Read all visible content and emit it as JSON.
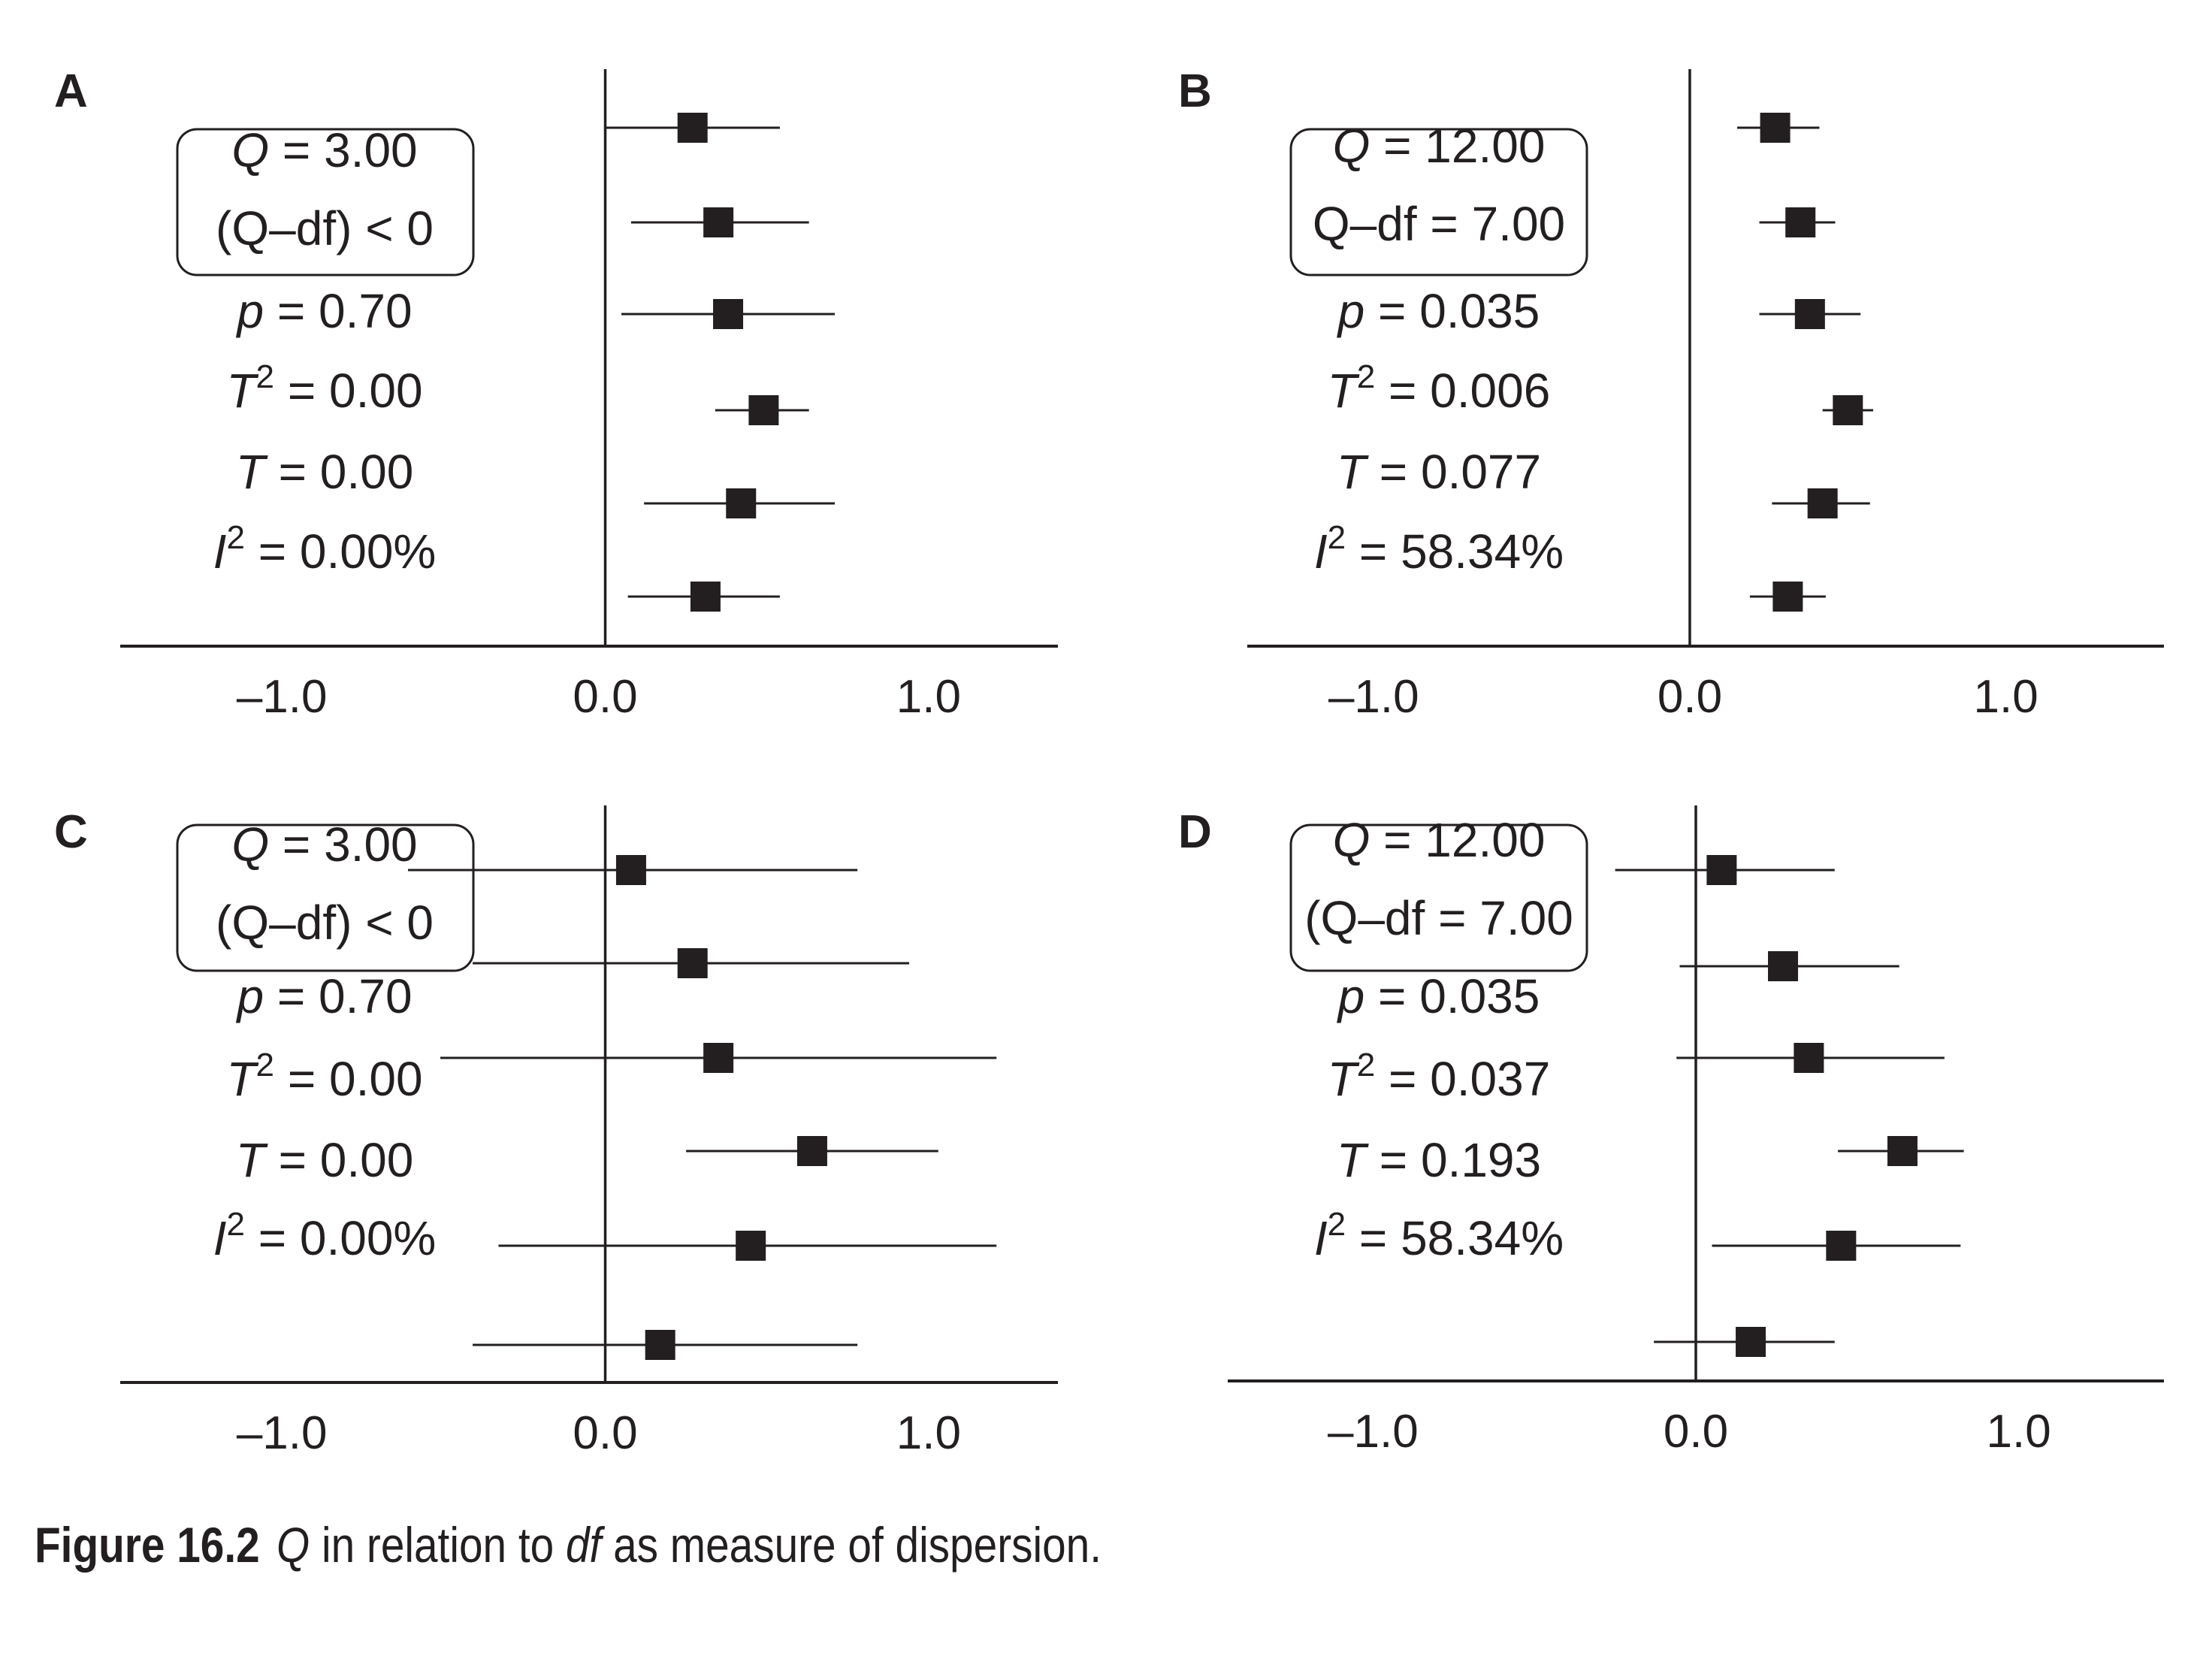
{
  "caption": {
    "label": "Figure 16.2",
    "text_q": "Q",
    "text_mid": " in relation to ",
    "text_df": "df",
    "text_end": " as measure of dispersion."
  },
  "chart_data": [
    {
      "panel": "A",
      "type": "scatter",
      "subtype": "forest-plot",
      "xlim": [
        -1.5,
        1.4
      ],
      "xticks": [
        -1.0,
        0.0,
        1.0
      ],
      "xtick_labels": [
        "–1.0",
        "0.0",
        "1.0"
      ],
      "reference_line_x": 0.0,
      "studies": [
        {
          "estimate": 0.27,
          "lower": 0.0,
          "upper": 0.54
        },
        {
          "estimate": 0.35,
          "lower": 0.08,
          "upper": 0.63
        },
        {
          "estimate": 0.38,
          "lower": 0.05,
          "upper": 0.71
        },
        {
          "estimate": 0.49,
          "lower": 0.34,
          "upper": 0.63
        },
        {
          "estimate": 0.42,
          "lower": 0.12,
          "upper": 0.71
        },
        {
          "estimate": 0.31,
          "lower": 0.07,
          "upper": 0.54
        }
      ],
      "stats": {
        "box": true,
        "q_text": "= 3.00",
        "qdf_text": "(Q–df) < 0",
        "p_text": "= 0.70",
        "t2_text": "= 0.00",
        "t_text": "= 0.00",
        "i2_text": "= 0.00%"
      }
    },
    {
      "panel": "B",
      "type": "scatter",
      "subtype": "forest-plot",
      "xlim": [
        -1.4,
        1.5
      ],
      "xticks": [
        -1.0,
        0.0,
        1.0
      ],
      "xtick_labels": [
        "–1.0",
        "0.0",
        "1.0"
      ],
      "reference_line_x": 0.0,
      "studies": [
        {
          "estimate": 0.27,
          "lower": 0.15,
          "upper": 0.41
        },
        {
          "estimate": 0.35,
          "lower": 0.22,
          "upper": 0.46
        },
        {
          "estimate": 0.38,
          "lower": 0.22,
          "upper": 0.54
        },
        {
          "estimate": 0.5,
          "lower": 0.42,
          "upper": 0.58
        },
        {
          "estimate": 0.42,
          "lower": 0.26,
          "upper": 0.57
        },
        {
          "estimate": 0.31,
          "lower": 0.19,
          "upper": 0.43
        }
      ],
      "stats": {
        "box": true,
        "q_text": "= 12.00",
        "qdf_text": "Q–df = 7.00",
        "p_text": "= 0.035",
        "t2_text": "= 0.006",
        "t_text": "= 0.077",
        "i2_text": "= 58.34%"
      }
    },
    {
      "panel": "C",
      "type": "scatter",
      "subtype": "forest-plot",
      "xlim": [
        -1.5,
        1.4
      ],
      "xticks": [
        -1.0,
        0.0,
        1.0
      ],
      "xtick_labels": [
        "–1.0",
        "0.0",
        "1.0"
      ],
      "reference_line_x": 0.0,
      "studies": [
        {
          "estimate": 0.08,
          "lower": -0.61,
          "upper": 0.78
        },
        {
          "estimate": 0.27,
          "lower": -0.41,
          "upper": 0.94
        },
        {
          "estimate": 0.35,
          "lower": -0.51,
          "upper": 1.21
        },
        {
          "estimate": 0.64,
          "lower": 0.25,
          "upper": 1.03
        },
        {
          "estimate": 0.45,
          "lower": -0.33,
          "upper": 1.21
        },
        {
          "estimate": 0.17,
          "lower": -0.41,
          "upper": 0.78
        }
      ],
      "stats": {
        "box": true,
        "q_text": "= 3.00",
        "qdf_text": "(Q–df) < 0",
        "p_text": "= 0.70",
        "t2_text": "= 0.00",
        "t_text": "= 0.00",
        "i2_text": "= 0.00%"
      }
    },
    {
      "panel": "D",
      "type": "scatter",
      "subtype": "forest-plot",
      "xlim": [
        -1.45,
        1.45
      ],
      "xticks": [
        -1.0,
        0.0,
        1.0
      ],
      "xtick_labels": [
        "–1.0",
        "0.0",
        "1.0"
      ],
      "reference_line_x": 0.0,
      "studies": [
        {
          "estimate": 0.08,
          "lower": -0.25,
          "upper": 0.43
        },
        {
          "estimate": 0.27,
          "lower": -0.05,
          "upper": 0.63
        },
        {
          "estimate": 0.35,
          "lower": -0.06,
          "upper": 0.77
        },
        {
          "estimate": 0.64,
          "lower": 0.44,
          "upper": 0.83
        },
        {
          "estimate": 0.45,
          "lower": 0.05,
          "upper": 0.82
        },
        {
          "estimate": 0.17,
          "lower": -0.13,
          "upper": 0.43
        }
      ],
      "stats": {
        "box": true,
        "q_text": "= 12.00",
        "qdf_text": "(Q–df = 7.00",
        "p_text": "= 0.035",
        "t2_text": "= 0.037",
        "t_text": "= 0.193",
        "i2_text": "= 58.34%"
      }
    }
  ]
}
